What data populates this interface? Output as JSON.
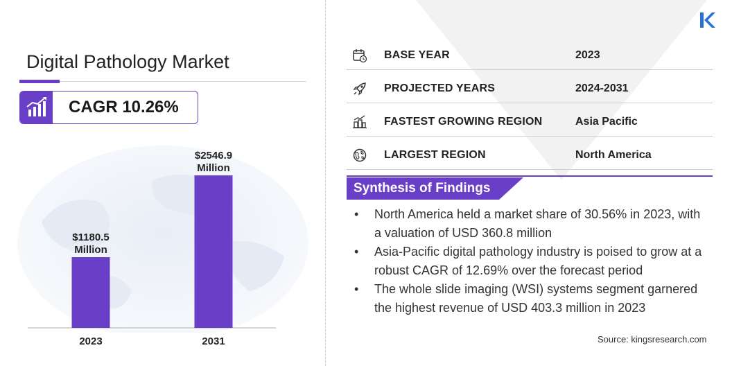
{
  "header": {
    "title": "Digital Pathology Market",
    "cagr_label": "CAGR 10.26%"
  },
  "chart_data": {
    "type": "bar",
    "categories": [
      "2023",
      "2031"
    ],
    "values": [
      1180.5,
      2546.9
    ],
    "data_labels": [
      [
        "$1180.5",
        "Million"
      ],
      [
        "$2546.9",
        "Million"
      ]
    ],
    "bar_color": "#6a3fc7",
    "title": "",
    "xlabel": "",
    "ylabel": ""
  },
  "info_rows": [
    {
      "label": "BASE YEAR",
      "value": "2023",
      "icon": "calendar-icon"
    },
    {
      "label": "PROJECTED YEARS",
      "value": "2024-2031",
      "icon": "rocket-icon"
    },
    {
      "label": "FASTEST GROWING REGION",
      "value": "Asia Pacific",
      "icon": "city-growth-icon"
    },
    {
      "label": "LARGEST REGION",
      "value": "North America",
      "icon": "globe-icon"
    }
  ],
  "synthesis": {
    "title": "Synthesis of Findings",
    "bullet": "•",
    "items": [
      "North America held a market share of 30.56% in 2023, with a valuation of USD 360.8 million",
      "Asia-Pacific digital pathology industry is poised to grow at a robust CAGR of 12.69% over the forecast period",
      "The whole slide imaging (WSI) systems segment garnered the highest revenue of USD 403.3 million in 2023"
    ]
  },
  "source": "Source:  kingsresearch.com",
  "colors": {
    "accent": "#6a3fc7",
    "logo": "#2a6fd6"
  }
}
